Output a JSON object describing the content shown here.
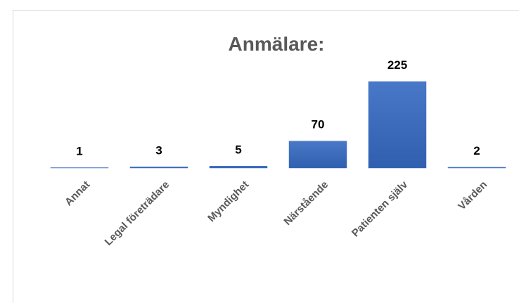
{
  "chart_data": {
    "type": "bar",
    "title": "Anmälare:",
    "categories": [
      "Annat",
      "Legal företrädare",
      "Myndighet",
      "Närstående",
      "Patienten själv",
      "Vården"
    ],
    "values": [
      1,
      3,
      5,
      70,
      225,
      2
    ],
    "color": "#4472c4"
  }
}
